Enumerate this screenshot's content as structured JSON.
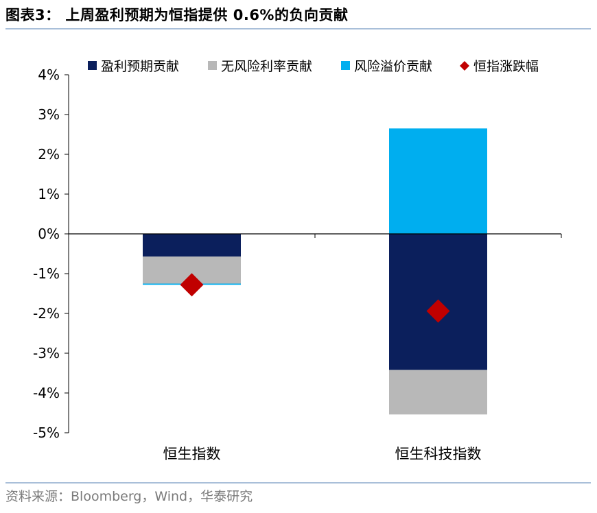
{
  "title": "图表3：  上周盈利预期为恒指提供 0.6%的负向贡献",
  "source": "资料来源：Bloomberg，Wind，华泰研究",
  "colors": {
    "earnings": "#0b1f5c",
    "riskfree": "#b8b8b8",
    "premium": "#00aeef",
    "index": "#c00000"
  },
  "chart_data": {
    "type": "bar",
    "stacked": true,
    "categories": [
      "恒生指数",
      "恒生科技指数"
    ],
    "series": [
      {
        "name": "盈利预期贡献",
        "values": [
          -0.57,
          -3.42
        ]
      },
      {
        "name": "无风险利率贡献",
        "values": [
          -0.68,
          -1.12
        ]
      },
      {
        "name": "风险溢价贡献",
        "values": [
          -0.03,
          2.65
        ]
      }
    ],
    "markers": {
      "name": "恒指涨跌幅",
      "values": [
        -1.28,
        -1.94
      ]
    },
    "y_ticks": [
      "4%",
      "3%",
      "2%",
      "1%",
      "0%",
      "-1%",
      "-2%",
      "-3%",
      "-4%",
      "-5%"
    ],
    "ylim": [
      -5,
      4
    ],
    "legend_position": "top",
    "grid": false
  }
}
